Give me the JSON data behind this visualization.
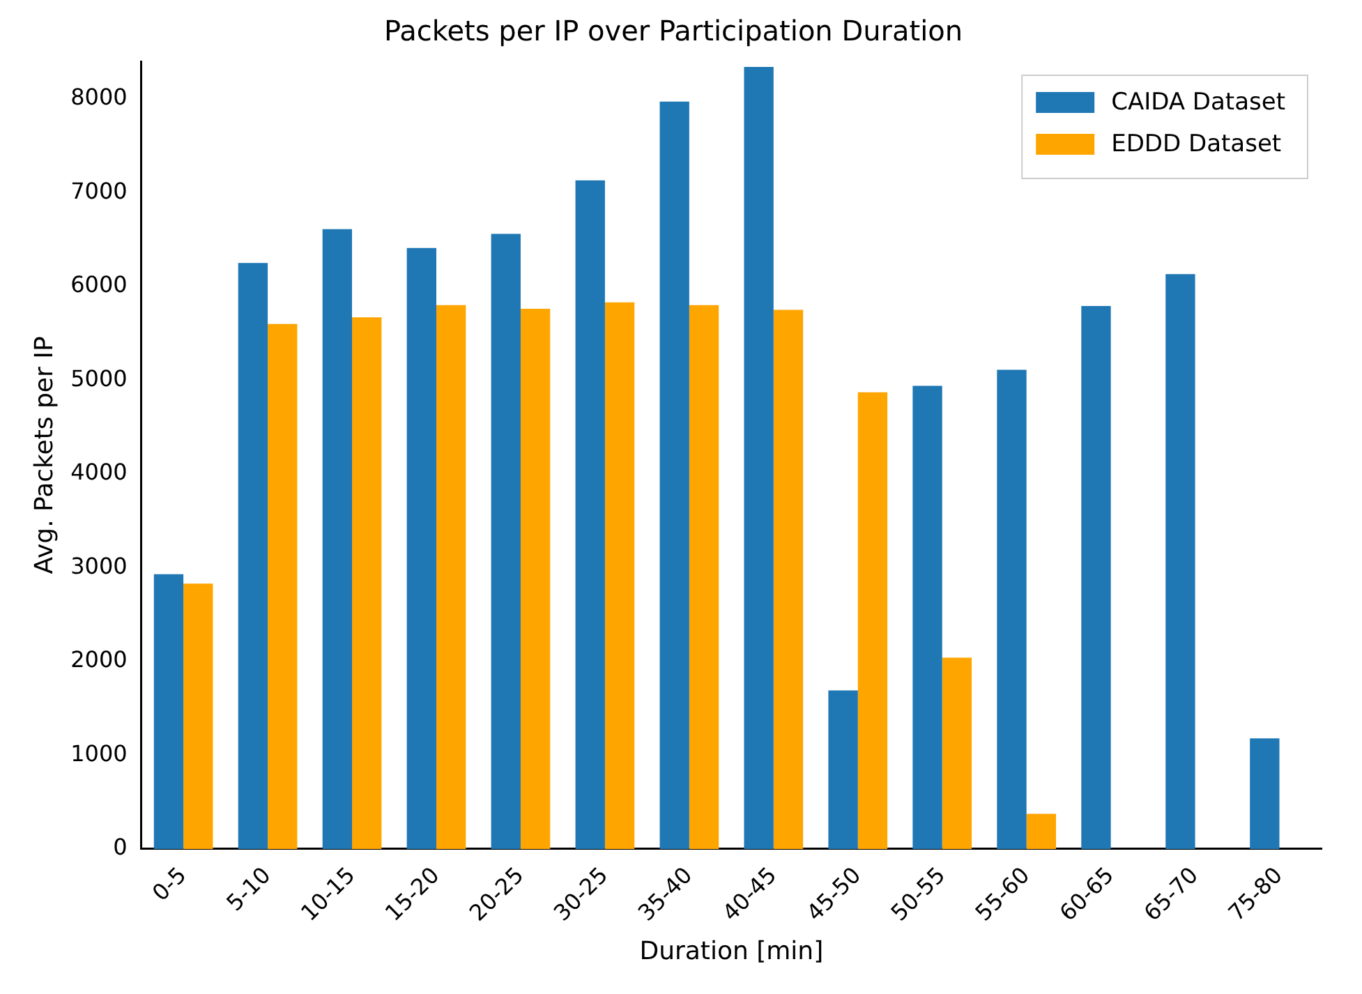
{
  "chart_data": {
    "type": "bar",
    "title": "Packets per IP over Participation Duration",
    "xlabel": "Duration [min]",
    "ylabel": "Avg. Packets per IP",
    "categories": [
      "0-5",
      "5-10",
      "10-15",
      "15-20",
      "20-25",
      "30-25",
      "35-40",
      "40-45",
      "45-50",
      "50-55",
      "55-60",
      "60-65",
      "65-70",
      "75-80"
    ],
    "series": [
      {
        "name": "CAIDA Dataset",
        "color": "#1f77b4",
        "values": [
          2930,
          6250,
          6610,
          6410,
          6560,
          7130,
          7970,
          8340,
          1690,
          4940,
          5110,
          5790,
          6130,
          1180
        ]
      },
      {
        "name": "EDDD Dataset",
        "color": "#ffa500",
        "values": [
          2830,
          5600,
          5670,
          5800,
          5760,
          5830,
          5800,
          5750,
          4870,
          2040,
          375,
          null,
          null,
          null
        ]
      }
    ],
    "ylim": [
      0,
      8400
    ],
    "yticks": [
      0,
      1000,
      2000,
      3000,
      4000,
      5000,
      6000,
      7000,
      8000
    ],
    "grid": false,
    "legend": "top right"
  }
}
